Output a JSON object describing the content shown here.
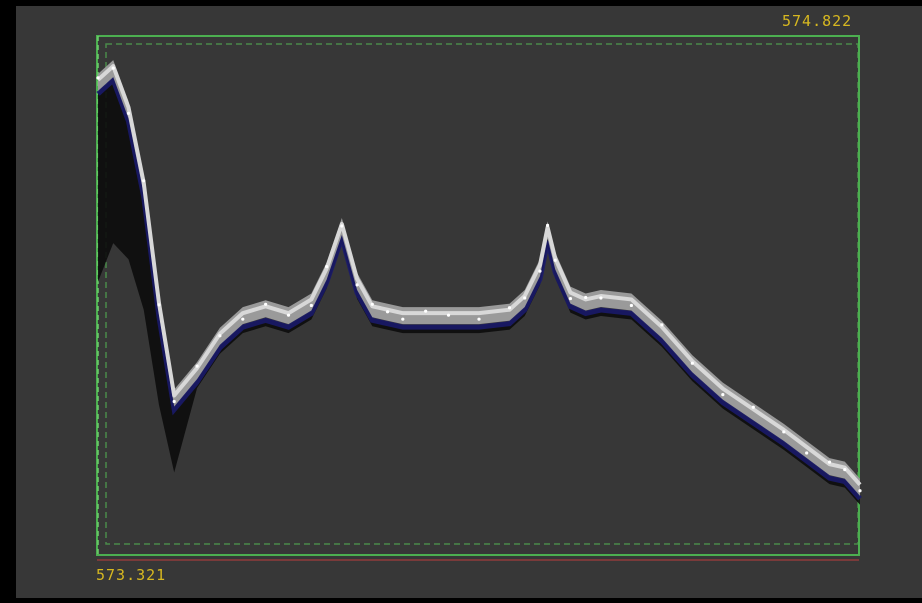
{
  "viewer": {
    "range_max": "574.822",
    "range_min": "573.321"
  },
  "colors": {
    "background": "#000000",
    "plot_area": "#373737",
    "bounding_box": "#4caf50",
    "range_label": "#d7b820",
    "surface_light": "#d8d8d8",
    "surface_mid": "#9a9a9a",
    "surface_shadow": "#0c0c0c",
    "surface_underside": "#1a1a6e"
  },
  "chart_data": {
    "type": "area",
    "xlabel": "",
    "ylabel": "",
    "ylim": [
      573.321,
      574.822
    ],
    "grid": false,
    "x": [
      0,
      0.02,
      0.04,
      0.06,
      0.08,
      0.1,
      0.13,
      0.16,
      0.19,
      0.22,
      0.25,
      0.28,
      0.3,
      0.32,
      0.34,
      0.36,
      0.38,
      0.4,
      0.43,
      0.46,
      0.5,
      0.54,
      0.56,
      0.58,
      0.59,
      0.6,
      0.62,
      0.64,
      0.66,
      0.7,
      0.74,
      0.78,
      0.82,
      0.86,
      0.9,
      0.93,
      0.96,
      0.98,
      1.0
    ],
    "series": [
      {
        "values": [
          574.7,
          574.74,
          574.62,
          574.4,
          574.05,
          573.78,
          573.86,
          573.96,
          574.02,
          574.04,
          574.02,
          574.06,
          574.15,
          574.28,
          574.12,
          574.04,
          574.03,
          574.02,
          574.02,
          574.02,
          574.02,
          574.03,
          574.07,
          574.16,
          574.27,
          574.18,
          574.08,
          574.06,
          574.07,
          574.06,
          573.98,
          573.88,
          573.8,
          573.74,
          573.68,
          573.63,
          573.58,
          573.57,
          573.52
        ]
      }
    ]
  }
}
